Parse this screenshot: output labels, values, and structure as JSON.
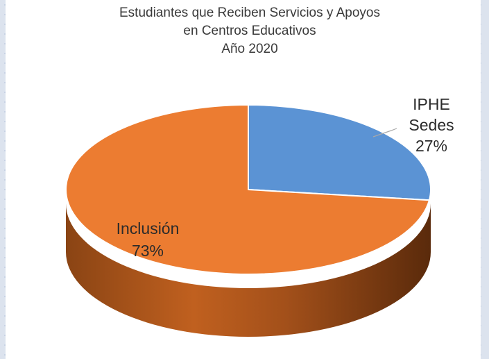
{
  "title_lines": [
    "Estudiantes que Reciben Servicios y Apoyos",
    "en Centros Educativos",
    "Año 2020"
  ],
  "colors": {
    "iphe_top": "#5b93d4",
    "inclusion_top": "#ec7c31",
    "inclusion_side_dark": "#7a3c12",
    "inclusion_side_mid": "#c05f1f"
  },
  "chart_data": {
    "type": "pie",
    "style": "3d",
    "title": "Estudiantes que Reciben Servicios y Apoyos en Centros Educativos Año 2020",
    "slices": [
      {
        "label_lines": [
          "IPHE",
          "Sedes"
        ],
        "value": 27,
        "value_label": "27%",
        "color": "#5b93d4"
      },
      {
        "label_lines": [
          "Inclusión"
        ],
        "value": 73,
        "value_label": "73%",
        "color": "#ec7c31"
      }
    ],
    "legend": "none"
  }
}
